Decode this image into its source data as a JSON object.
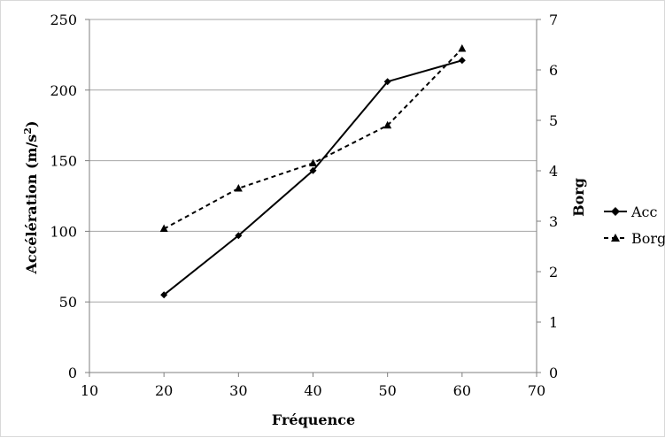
{
  "chart_data": {
    "type": "line",
    "title": "",
    "xlabel": "Fréquence",
    "ylabel": "Accélération (m/s²)",
    "y2label": "Borg",
    "xlim": [
      10,
      70
    ],
    "ylim": [
      0,
      250
    ],
    "y2lim": [
      0,
      7
    ],
    "x_ticks": [
      "10",
      "20",
      "30",
      "40",
      "50",
      "60",
      "70"
    ],
    "y_ticks": [
      "0",
      "50",
      "100",
      "150",
      "200",
      "250"
    ],
    "y2_ticks": [
      "0",
      "1",
      "2",
      "3",
      "4",
      "5",
      "6",
      "7"
    ],
    "grid": true,
    "legend_position": "right",
    "series": [
      {
        "name": "Acc",
        "axis": "left",
        "marker": "diamond",
        "line_style": "solid",
        "color": "#000000",
        "x": [
          20,
          30,
          40,
          50,
          60
        ],
        "y": [
          55,
          97,
          143,
          206,
          221
        ]
      },
      {
        "name": "Borg",
        "axis": "right",
        "marker": "triangle",
        "line_style": "dashed",
        "color": "#000000",
        "x": [
          20,
          30,
          40,
          50,
          60
        ],
        "y": [
          2.85,
          3.65,
          4.15,
          4.9,
          6.42
        ]
      }
    ]
  }
}
